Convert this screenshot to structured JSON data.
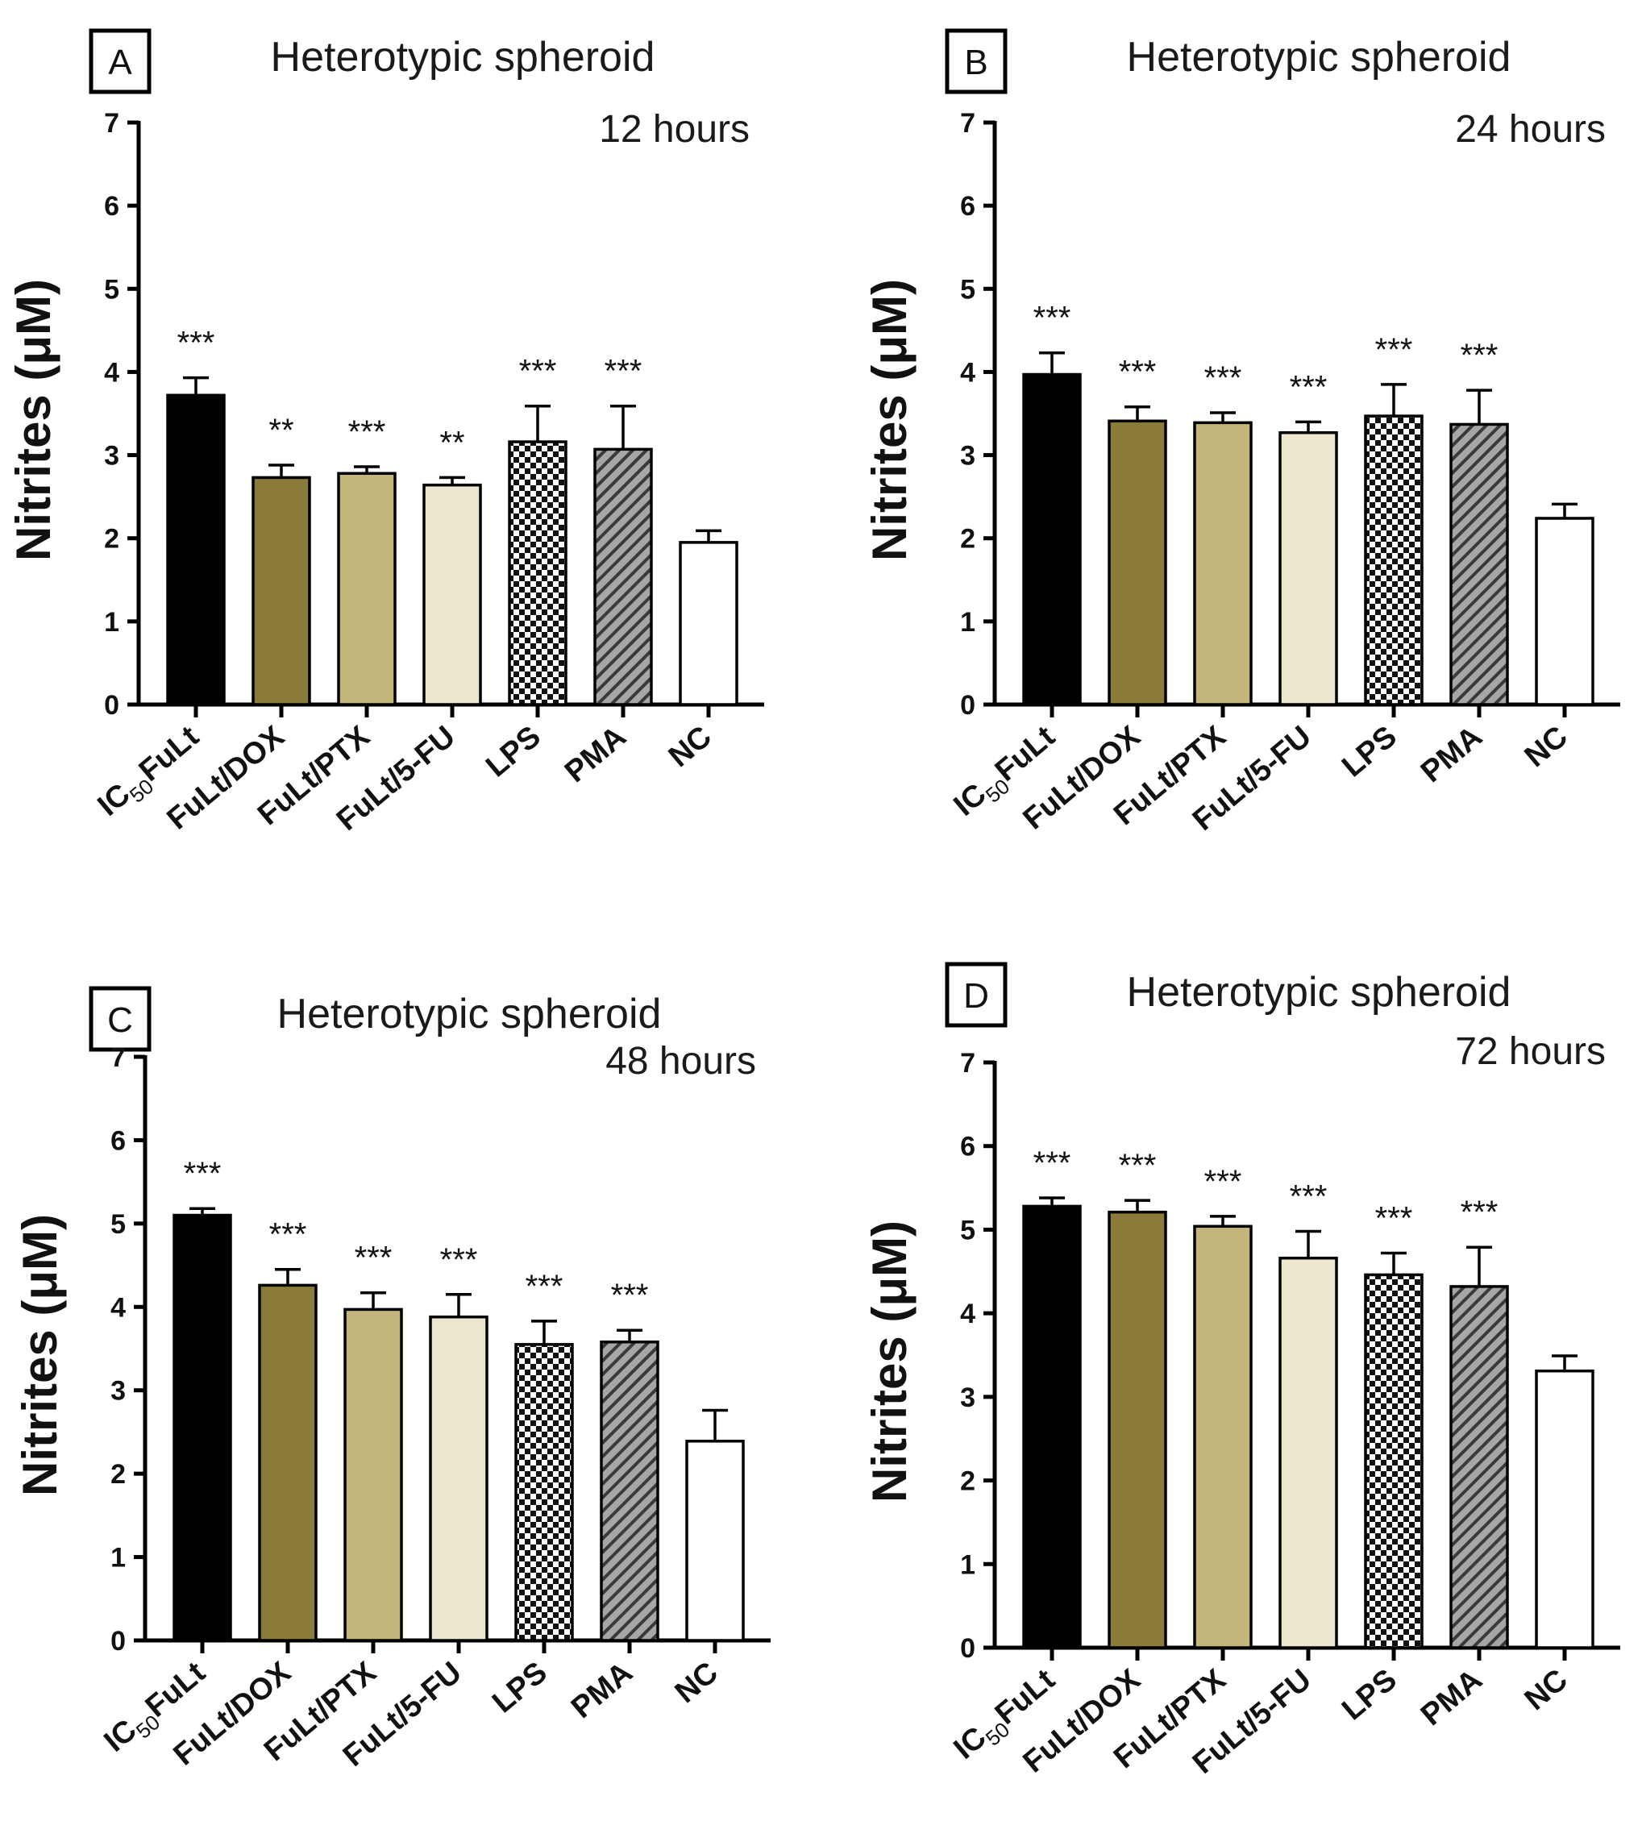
{
  "figure": {
    "ylabel": "Nitrites (μM)",
    "colors": {
      "axis": "#000000",
      "IC50FuLt": "#000000",
      "FuLt/DOX": "#8b7b3a",
      "FuLt/PTX": "#c4b57a",
      "FuLt/5-FU": "#ede7cf",
      "LPS": "checkerboard-black-white",
      "PMA": "hatched-gray",
      "NC": "#ffffff"
    }
  },
  "chart_data": [
    {
      "panel": "A",
      "type": "bar",
      "title": "Heterotypic spheroid",
      "subtitle": "12 hours",
      "ylabel": "Nitrites (μM)",
      "ylim": [
        0,
        7
      ],
      "yticks": [
        "0",
        "1",
        "2",
        "3",
        "4",
        "5",
        "6",
        "7"
      ],
      "categories": [
        "IC50FuLt",
        "FuLt/DOX",
        "FuLt/PTX",
        "FuLt/5-FU",
        "LPS",
        "PMA",
        "NC"
      ],
      "values": [
        3.72,
        2.73,
        2.78,
        2.64,
        3.16,
        3.07,
        1.95
      ],
      "errors": [
        0.21,
        0.15,
        0.08,
        0.09,
        0.43,
        0.52,
        0.14
      ],
      "significance": [
        "***",
        "**",
        "***",
        "**",
        "***",
        "***",
        ""
      ]
    },
    {
      "panel": "B",
      "type": "bar",
      "title": "Heterotypic spheroid",
      "subtitle": "24 hours",
      "ylabel": "Nitrites (μM)",
      "ylim": [
        0,
        7
      ],
      "yticks": [
        "0",
        "1",
        "2",
        "3",
        "4",
        "5",
        "6",
        "7"
      ],
      "categories": [
        "IC50FuLt",
        "FuLt/DOX",
        "FuLt/PTX",
        "FuLt/5-FU",
        "LPS",
        "PMA",
        "NC"
      ],
      "values": [
        3.97,
        3.41,
        3.39,
        3.27,
        3.47,
        3.37,
        2.24
      ],
      "errors": [
        0.26,
        0.17,
        0.12,
        0.13,
        0.38,
        0.41,
        0.17
      ],
      "significance": [
        "***",
        "***",
        "***",
        "***",
        "***",
        "***",
        ""
      ]
    },
    {
      "panel": "C",
      "type": "bar",
      "title": "Heterotypic spheroid",
      "subtitle": "48 hours",
      "ylabel": "Nitrites (μM)",
      "ylim": [
        0,
        7
      ],
      "yticks": [
        "0",
        "1",
        "2",
        "3",
        "4",
        "5",
        "6",
        "7"
      ],
      "categories": [
        "IC50FuLt",
        "FuLt/DOX",
        "FuLt/PTX",
        "FuLt/5-FU",
        "LPS",
        "PMA",
        "NC"
      ],
      "values": [
        5.1,
        4.26,
        3.97,
        3.88,
        3.55,
        3.58,
        2.39
      ],
      "errors": [
        0.08,
        0.19,
        0.2,
        0.27,
        0.28,
        0.14,
        0.37
      ],
      "significance": [
        "***",
        "***",
        "***",
        "***",
        "***",
        "***",
        ""
      ]
    },
    {
      "panel": "D",
      "type": "bar",
      "title": "Heterotypic spheroid",
      "subtitle": "72 hours",
      "ylabel": "Nitrites (μM)",
      "ylim": [
        0,
        7
      ],
      "yticks": [
        "0",
        "1",
        "2",
        "3",
        "4",
        "5",
        "6",
        "7"
      ],
      "categories": [
        "IC50FuLt",
        "FuLt/DOX",
        "FuLt/PTX",
        "FuLt/5-FU",
        "LPS",
        "PMA",
        "NC"
      ],
      "values": [
        5.28,
        5.21,
        5.04,
        4.66,
        4.46,
        4.32,
        3.31
      ],
      "errors": [
        0.1,
        0.14,
        0.12,
        0.32,
        0.26,
        0.47,
        0.18
      ],
      "significance": [
        "***",
        "***",
        "***",
        "***",
        "***",
        "***",
        ""
      ]
    }
  ]
}
